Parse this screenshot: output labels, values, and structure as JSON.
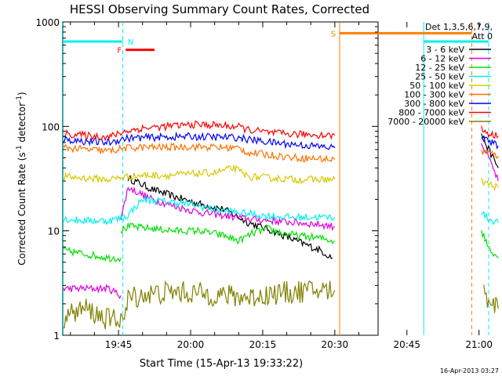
{
  "chart_data": {
    "type": "line",
    "title": "HESSI Observing Summary Count Rates, Corrected",
    "xlabel": "Start Time (15-Apr-13 19:33:22)",
    "ylabel_main": "Corrected Count Rate (s",
    "ylabel_sup1": "-1",
    "ylabel_mid": " detector",
    "ylabel_sup2": "-1",
    "ylabel_end": ")",
    "y_scale": "log",
    "ylim": [
      1,
      1000
    ],
    "xlim_minutes": [
      33.4,
      99.0
    ],
    "x_ticks": [
      {
        "label": "19:45",
        "value": 45
      },
      {
        "label": "20:00",
        "value": 60
      },
      {
        "label": "20:15",
        "value": 75
      },
      {
        "label": "20:30",
        "value": 90
      },
      {
        "label": "20:45",
        "value": 105
      },
      {
        "label": "21:00",
        "value": 120
      }
    ],
    "y_ticks": [
      {
        "label": "1",
        "value": 1
      },
      {
        "label": "10",
        "value": 10
      },
      {
        "label": "100",
        "value": 100
      },
      {
        "label": "1000",
        "value": 1000
      }
    ],
    "legend_title_line1": "Det 1,3,5,6,7,9,",
    "legend_title_line2": "Att 0",
    "legend_placement": "top-right, outside plot",
    "timestamp": "16-Apr-2013 03:27",
    "series": [
      {
        "name": "3 - 6 keV",
        "color": "#000000",
        "segments": [
          [
            [
              47,
              32
            ],
            [
              52,
              25
            ],
            [
              57,
              21
            ],
            [
              62,
              18
            ],
            [
              67,
              16
            ],
            [
              72,
              12
            ],
            [
              77,
              10
            ],
            [
              82,
              8
            ],
            [
              87,
              6.5
            ],
            [
              89.5,
              5.5
            ]
          ],
          [
            [
              120.5,
              85
            ],
            [
              122,
              60
            ],
            [
              124,
              40
            ]
          ]
        ]
      },
      {
        "name": "6 - 12 keV",
        "color": "#e000e0",
        "segments": [
          [
            [
              33.5,
              2.8
            ],
            [
              43,
              2.8
            ],
            [
              45.5,
              2.4
            ]
          ],
          [
            [
              45.5,
              13
            ],
            [
              47,
              26
            ],
            [
              52,
              20
            ],
            [
              57,
              17
            ],
            [
              62,
              15
            ],
            [
              67,
              14
            ],
            [
              72,
              13
            ],
            [
              77,
              12.5
            ],
            [
              82,
              12
            ],
            [
              87,
              11.5
            ],
            [
              90,
              11
            ]
          ],
          [
            [
              120.5,
              70
            ],
            [
              122,
              50
            ],
            [
              124,
              30
            ]
          ]
        ]
      },
      {
        "name": "12 - 25 keV",
        "color": "#00e000",
        "segments": [
          [
            [
              33.5,
              6.5
            ],
            [
              38,
              6
            ],
            [
              43,
              5.5
            ],
            [
              45.5,
              5.5
            ]
          ],
          [
            [
              45.5,
              10
            ],
            [
              47,
              11
            ],
            [
              52,
              10.5
            ],
            [
              57,
              10
            ],
            [
              62,
              10
            ],
            [
              67,
              9
            ],
            [
              70,
              8
            ],
            [
              73,
              9.5
            ],
            [
              76,
              10.5
            ],
            [
              79,
              9.5
            ],
            [
              82,
              9
            ],
            [
              87,
              8.5
            ],
            [
              90,
              8
            ]
          ],
          [
            [
              120.5,
              10
            ],
            [
              122,
              7
            ],
            [
              124,
              5.5
            ]
          ]
        ]
      },
      {
        "name": "25 - 50 keV",
        "color": "#00f0f0",
        "segments": [
          [
            [
              33.5,
              13
            ],
            [
              38,
              12.5
            ],
            [
              43,
              12.5
            ],
            [
              46.5,
              13.5
            ],
            [
              50,
              20
            ],
            [
              55,
              19
            ],
            [
              60,
              18
            ],
            [
              65,
              16
            ],
            [
              70,
              15
            ],
            [
              75,
              14
            ],
            [
              80,
              13.5
            ],
            [
              85,
              13.5
            ],
            [
              90,
              13.5
            ]
          ],
          [
            [
              120.5,
              15
            ],
            [
              122,
              13
            ],
            [
              124,
              12
            ]
          ]
        ]
      },
      {
        "name": "50 - 100 keV",
        "color": "#d8c800",
        "segments": [
          [
            [
              33.5,
              33
            ],
            [
              38,
              32
            ],
            [
              43,
              31
            ],
            [
              46.5,
              33
            ],
            [
              50,
              34
            ],
            [
              55,
              34
            ],
            [
              60,
              35
            ],
            [
              65,
              36
            ],
            [
              69,
              40
            ],
            [
              72,
              33
            ],
            [
              77,
              32
            ],
            [
              82,
              31
            ],
            [
              87,
              31
            ],
            [
              90,
              31
            ]
          ],
          [
            [
              120.5,
              30
            ],
            [
              122,
              28
            ],
            [
              124,
              26
            ]
          ]
        ]
      },
      {
        "name": "100 - 300 keV",
        "color": "#ff7000",
        "segments": [
          [
            [
              33.5,
              63
            ],
            [
              38,
              60
            ],
            [
              43,
              58
            ],
            [
              46.5,
              62
            ],
            [
              50,
              63
            ],
            [
              55,
              63
            ],
            [
              60,
              64
            ],
            [
              65,
              63
            ],
            [
              70,
              62
            ],
            [
              72,
              56
            ],
            [
              77,
              53
            ],
            [
              82,
              50
            ],
            [
              87,
              49
            ],
            [
              90,
              48
            ]
          ],
          [
            [
              120.5,
              58
            ],
            [
              122,
              56
            ],
            [
              124,
              52
            ]
          ]
        ]
      },
      {
        "name": "300 - 800 keV",
        "color": "#0000ff",
        "segments": [
          [
            [
              33.5,
              75
            ],
            [
              38,
              72
            ],
            [
              43,
              70
            ],
            [
              46.5,
              77
            ],
            [
              50,
              78
            ],
            [
              55,
              79
            ],
            [
              60,
              80
            ],
            [
              65,
              79
            ],
            [
              70,
              78
            ],
            [
              72,
              75
            ],
            [
              77,
              70
            ],
            [
              82,
              67
            ],
            [
              87,
              64
            ],
            [
              90,
              62
            ]
          ],
          [
            [
              120.5,
              80
            ],
            [
              122,
              72
            ],
            [
              124,
              65
            ]
          ]
        ]
      },
      {
        "name": "800 - 7000 keV",
        "color": "#ff0000",
        "segments": [
          [
            [
              33.5,
              85
            ],
            [
              38,
              82
            ],
            [
              43,
              79
            ],
            [
              46.5,
              90
            ],
            [
              50,
              96
            ],
            [
              55,
              100
            ],
            [
              60,
              104
            ],
            [
              65,
              103
            ],
            [
              70,
              99
            ],
            [
              72,
              93
            ],
            [
              77,
              86
            ],
            [
              82,
              84
            ],
            [
              87,
              83
            ],
            [
              90,
              82
            ]
          ],
          [
            [
              120.5,
              95
            ],
            [
              122,
              85
            ],
            [
              124,
              80
            ]
          ]
        ]
      },
      {
        "name": "7000 - 20000 keV",
        "color": "#808000",
        "segments": [
          [
            [
              33.5,
              1.5
            ],
            [
              38,
              1.8
            ],
            [
              43,
              1.4
            ],
            [
              46.5,
              1.5
            ],
            [
              47,
              2.3
            ],
            [
              52,
              2.5
            ],
            [
              57,
              2.6
            ],
            [
              62,
              2.5
            ],
            [
              67,
              2.4
            ],
            [
              72,
              2.3
            ],
            [
              77,
              2.5
            ],
            [
              82,
              2.6
            ],
            [
              87,
              2.7
            ],
            [
              90,
              2.7
            ]
          ],
          [
            [
              121,
              2.5
            ],
            [
              122.5,
              2.2
            ],
            [
              124,
              1.8
            ]
          ]
        ]
      }
    ],
    "bars": [
      {
        "label": "N",
        "color": "#00f0f0",
        "ranges": [
          [
            33.4,
            45.9
          ],
          [
            108.5,
            122.0
          ]
        ],
        "y": 650
      },
      {
        "label": "F",
        "color": "#ff0000",
        "ranges": [
          [
            46.5,
            52.5
          ]
        ],
        "y": 540
      },
      {
        "label": "S",
        "color": "#ff8000",
        "ranges": [
          [
            91.0,
            118.5
          ]
        ],
        "y": 780
      }
    ],
    "vlines": [
      {
        "x": 33.5,
        "color": "#00f0f0",
        "dash": false
      },
      {
        "x": 45.9,
        "color": "#00f0f0",
        "dash": true
      },
      {
        "x": 91.0,
        "color": "#ff8000",
        "dash": false
      },
      {
        "x": 108.5,
        "color": "#00f0f0",
        "dash": false
      },
      {
        "x": 118.5,
        "color": "#ff8000",
        "dash": true
      },
      {
        "x": 122.0,
        "color": "#00f0f0",
        "dash": true
      }
    ]
  }
}
